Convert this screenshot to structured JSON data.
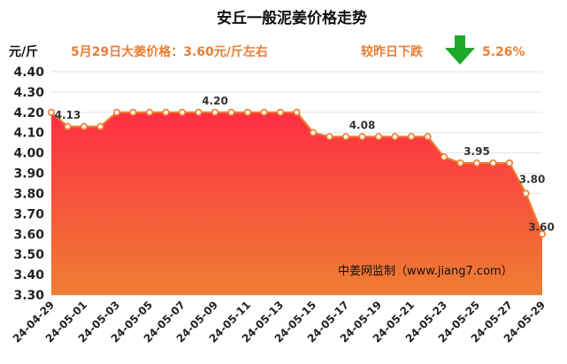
{
  "header": {
    "title": "安丘一般泥姜价格走势",
    "unit": "元/斤",
    "price_text": "5月29日大姜价格：3.60元/斤左右",
    "change_text": "较昨日下跌",
    "change_pct": "5.26%",
    "arrow_color": "#1FA82B"
  },
  "watermark": "中姜网监制（www.jiang7.com）",
  "colors": {
    "line": "#ED7D31",
    "area_top": "#FF2E43",
    "area_bottom": "#EE7E33",
    "marker_fill": "#FFF3E6"
  },
  "chart_data": {
    "type": "area",
    "title": "安丘一般泥姜价格走势",
    "ylabel": "元/斤",
    "xlabel": "",
    "ylim": [
      3.3,
      4.4
    ],
    "yticks": [
      "3.30",
      "3.40",
      "3.50",
      "3.60",
      "3.70",
      "3.80",
      "3.90",
      "4.00",
      "4.10",
      "4.20",
      "4.30",
      "4.40"
    ],
    "grid": true,
    "x": [
      "24-04-29",
      "24-04-30",
      "24-05-01",
      "24-05-02",
      "24-05-03",
      "24-05-04",
      "24-05-05",
      "24-05-06",
      "24-05-07",
      "24-05-08",
      "24-05-09",
      "24-05-10",
      "24-05-11",
      "24-05-12",
      "24-05-13",
      "24-05-14",
      "24-05-15",
      "24-05-16",
      "24-05-17",
      "24-05-18",
      "24-05-19",
      "24-05-20",
      "24-05-21",
      "24-05-22",
      "24-05-23",
      "24-05-24",
      "24-05-25",
      "24-05-26",
      "24-05-27",
      "24-05-28",
      "24-05-29"
    ],
    "xticks_shown": [
      "24-04-29",
      "24-05-01",
      "24-05-03",
      "24-05-05",
      "24-05-07",
      "24-05-09",
      "24-05-11",
      "24-05-13",
      "24-05-15",
      "24-05-17",
      "24-05-19",
      "24-05-21",
      "24-05-23",
      "24-05-25",
      "24-05-27",
      "24-05-29"
    ],
    "values": [
      4.2,
      4.13,
      4.13,
      4.13,
      4.2,
      4.2,
      4.2,
      4.2,
      4.2,
      4.2,
      4.2,
      4.2,
      4.2,
      4.2,
      4.2,
      4.2,
      4.1,
      4.08,
      4.08,
      4.08,
      4.08,
      4.08,
      4.08,
      4.08,
      3.98,
      3.95,
      3.95,
      3.95,
      3.95,
      3.8,
      3.6
    ],
    "data_labels": [
      {
        "index": 1,
        "text": "4.13"
      },
      {
        "index": 10,
        "text": "4.20"
      },
      {
        "index": 19,
        "text": "4.08"
      },
      {
        "index": 26,
        "text": "3.95"
      },
      {
        "index": 29,
        "text": "3.80"
      },
      {
        "index": 30,
        "text": "3.60"
      }
    ]
  }
}
